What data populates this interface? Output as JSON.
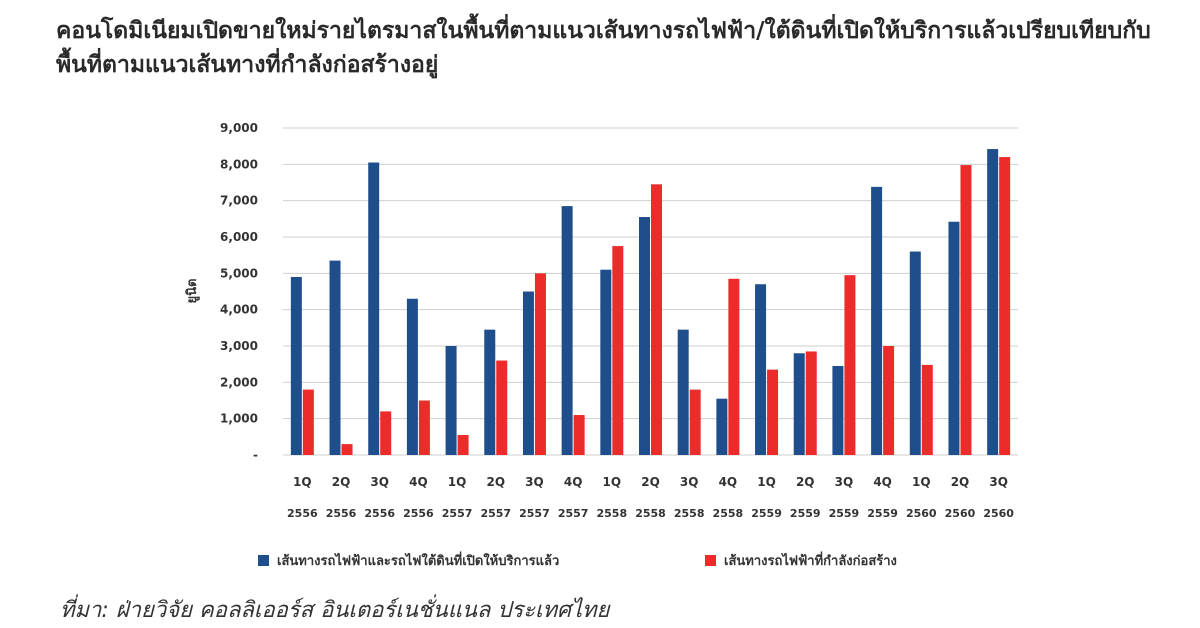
{
  "title": "คอนโดมิเนียมเปิดขายใหม่รายไตรมาสในพื้นที่ตามแนวเส้นทางรถไฟฟ้า/ใต้ดินที่เปิดให้บริการแล้วเปรียบเทียบกับพื้นที่ตามแนวเส้นทางที่กำลังก่อสร้างอยู่",
  "source": "ที่มา: ฝ่ายวิจัย คอลลิเออร์ส อินเตอร์เนชั่นแนล ประเทศไทย",
  "colors": {
    "series1": "#1f4e8c",
    "series2": "#ee2b2b",
    "grid": "#cfcfcf"
  },
  "chart_data": {
    "type": "bar",
    "ylabel": "ยูนิต",
    "ylim": [
      0,
      9000
    ],
    "yticks": [
      0,
      1000,
      2000,
      3000,
      4000,
      5000,
      6000,
      7000,
      8000,
      9000
    ],
    "ytick_labels": [
      "-",
      "1,000",
      "2,000",
      "3,000",
      "4,000",
      "5,000",
      "6,000",
      "7,000",
      "8,000",
      "9,000"
    ],
    "grid": true,
    "legend_position": "bottom",
    "categories": [
      {
        "q": "1Q",
        "y": "2556"
      },
      {
        "q": "2Q",
        "y": "2556"
      },
      {
        "q": "3Q",
        "y": "2556"
      },
      {
        "q": "4Q",
        "y": "2556"
      },
      {
        "q": "1Q",
        "y": "2557"
      },
      {
        "q": "2Q",
        "y": "2557"
      },
      {
        "q": "3Q",
        "y": "2557"
      },
      {
        "q": "4Q",
        "y": "2557"
      },
      {
        "q": "1Q",
        "y": "2558"
      },
      {
        "q": "2Q",
        "y": "2558"
      },
      {
        "q": "3Q",
        "y": "2558"
      },
      {
        "q": "4Q",
        "y": "2558"
      },
      {
        "q": "1Q",
        "y": "2559"
      },
      {
        "q": "2Q",
        "y": "2559"
      },
      {
        "q": "3Q",
        "y": "2559"
      },
      {
        "q": "4Q",
        "y": "2559"
      },
      {
        "q": "1Q",
        "y": "2560"
      },
      {
        "q": "2Q",
        "y": "2560"
      },
      {
        "q": "3Q",
        "y": "2560"
      }
    ],
    "series": [
      {
        "name": "เส้นทางรถไฟฟ้าและรถไฟใต้ดินที่เปิดให้บริการแล้ว",
        "values": [
          4900,
          5350,
          8050,
          4300,
          3000,
          3450,
          4500,
          6850,
          5100,
          6550,
          3450,
          1550,
          4700,
          2800,
          2450,
          7380,
          5600,
          6420,
          8420
        ]
      },
      {
        "name": "เส้นทางรถไฟฟ้าที่กำลังก่อสร้าง",
        "values": [
          1800,
          300,
          1200,
          1500,
          550,
          2600,
          5000,
          1100,
          5750,
          7450,
          1800,
          4850,
          2350,
          2850,
          4950,
          3000,
          2480,
          7980,
          8200
        ]
      }
    ]
  }
}
